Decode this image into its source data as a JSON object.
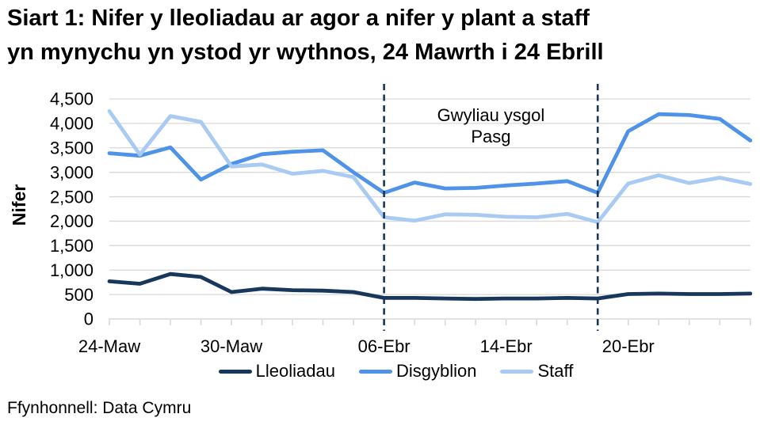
{
  "title_lines": [
    "Siart 1: Nifer y lleoliadau ar agor a nifer y plant a staff",
    "yn mynychu yn ystod yr wythnos, 24 Mawrth i 24 Ebrill"
  ],
  "source": "Ffynhonnell: Data Cymru",
  "annotation_lines": [
    "Gwyliau ysgol",
    "Pasg"
  ],
  "chart_data": {
    "type": "line",
    "title": "Siart 1: Nifer y lleoliadau ar agor a nifer y plant a staff yn mynychu yn ystod yr wythnos, 24 Mawrth i 24 Ebrill",
    "xlabel": "",
    "ylabel": "Nifer",
    "ylim": [
      0,
      4500
    ],
    "ytick_step": 500,
    "grid": "horizontal",
    "legend_position": "bottom",
    "x": [
      "24-Maw",
      "25-Maw",
      "26-Maw",
      "27-Maw",
      "30-Maw",
      "31-Maw",
      "01-Ebr",
      "02-Ebr",
      "03-Ebr",
      "06-Ebr",
      "07-Ebr",
      "08-Ebr",
      "09-Ebr",
      "14-Ebr",
      "15-Ebr",
      "16-Ebr",
      "17-Ebr",
      "20-Ebr",
      "21-Ebr",
      "22-Ebr",
      "23-Ebr",
      "24-Ebr"
    ],
    "xtick_shown": [
      {
        "index": 0,
        "label": "24-Maw"
      },
      {
        "index": 4,
        "label": "30-Maw"
      },
      {
        "index": 9,
        "label": "06-Ebr"
      },
      {
        "index": 13,
        "label": "14-Ebr"
      },
      {
        "index": 17,
        "label": "20-Ebr"
      }
    ],
    "series": [
      {
        "name": "Lleoliadau",
        "color": "#17375d",
        "values": [
          770,
          720,
          920,
          860,
          550,
          620,
          590,
          580,
          550,
          430,
          430,
          420,
          410,
          420,
          420,
          430,
          420,
          510,
          520,
          510,
          510,
          520
        ]
      },
      {
        "name": "Disgyblion",
        "color": "#4f93e8",
        "values": [
          3390,
          3340,
          3510,
          2850,
          3170,
          3370,
          3420,
          3450,
          3000,
          2580,
          2790,
          2670,
          2680,
          2730,
          2770,
          2820,
          2580,
          3840,
          4190,
          4170,
          4090,
          3650
        ]
      },
      {
        "name": "Staff",
        "color": "#a9caf2",
        "values": [
          4250,
          3360,
          4150,
          4030,
          3120,
          3160,
          2970,
          3030,
          2900,
          2080,
          2010,
          2140,
          2130,
          2090,
          2080,
          2150,
          1980,
          2770,
          2940,
          2780,
          2890,
          2760
        ]
      }
    ],
    "vlines": {
      "x_indices": [
        9,
        16
      ],
      "style": "dashed",
      "color": "#17375d",
      "label": "Gwyliau ysgol Pasg"
    }
  },
  "style_colors": {
    "grid": "#d9d9d9",
    "axis": "#d9d9d9",
    "text": "#000000"
  }
}
